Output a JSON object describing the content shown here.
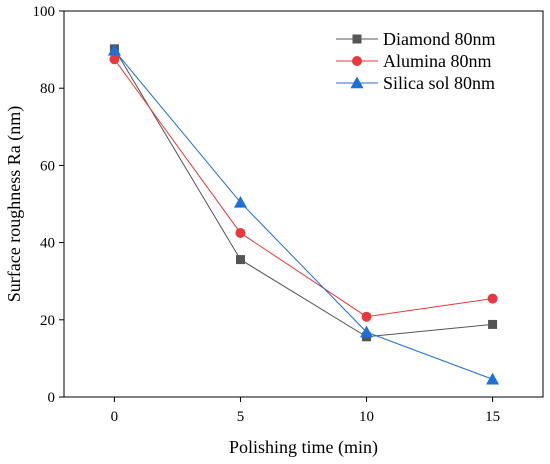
{
  "chart_data": {
    "type": "line",
    "title": "",
    "xlabel": "Polishing time (min)",
    "ylabel": "Surface roughness Ra (nm)",
    "x": [
      0,
      5,
      10,
      15
    ],
    "x_ticks": [
      "0",
      "5",
      "10",
      "15"
    ],
    "y_ticks": [
      "0",
      "20",
      "40",
      "60",
      "80",
      "100"
    ],
    "xlim": [
      -2,
      17
    ],
    "ylim": [
      0,
      100
    ],
    "grid": false,
    "legend_position": "top-right",
    "series": [
      {
        "name": "Diamond 80nm",
        "values": [
          90.2,
          35.6,
          15.6,
          18.8
        ],
        "color": "#555555",
        "marker": "square"
      },
      {
        "name": "Alumina 80nm",
        "values": [
          87.5,
          42.5,
          20.8,
          25.5
        ],
        "color": "#e8383d",
        "marker": "circle"
      },
      {
        "name": "Silica sol 80nm",
        "values": [
          89.8,
          50.4,
          16.8,
          4.6
        ],
        "color": "#1f6fd6",
        "marker": "triangle"
      }
    ]
  }
}
